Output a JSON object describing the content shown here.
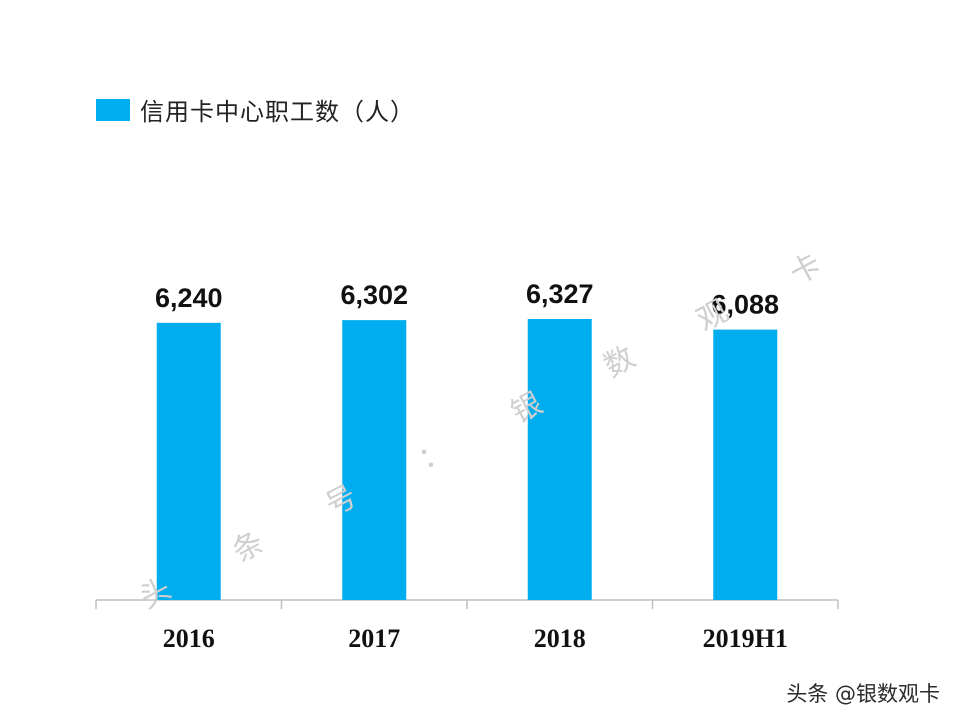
{
  "colors": {
    "bar": "#00AEEF",
    "axis": "#bfbfbf",
    "watermark": "#cfcfcf"
  },
  "watermark": {
    "diagonal": [
      "头",
      "条",
      "号",
      "：",
      "银",
      "数",
      "观",
      "卡"
    ],
    "footer": "头条 @银数观卡"
  },
  "chart_data": {
    "type": "bar",
    "categories": [
      "2016",
      "2017",
      "2018",
      "2019H1"
    ],
    "series": [
      {
        "name": "信用卡中心职工数（人）",
        "values": [
          6240,
          6302,
          6327,
          6088
        ]
      }
    ],
    "value_labels": [
      "6,240",
      "6,302",
      "6,327",
      "6,088"
    ],
    "ylim": [
      0,
      6800
    ],
    "grid": false,
    "legend": "top-left",
    "title": "",
    "xlabel": "",
    "ylabel": ""
  }
}
